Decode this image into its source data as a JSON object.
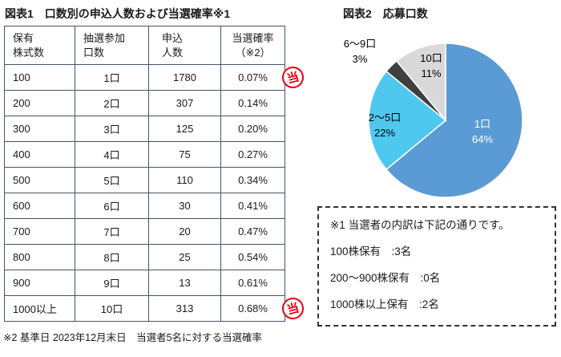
{
  "page": {
    "bg": "#ffffff",
    "text_color": "#1a1a1a",
    "accent_red": "#e60012",
    "table_border": "#44546A"
  },
  "table_section": {
    "title": "図表1　口数別の申込人数および当選確率※1",
    "headers": [
      [
        "保有",
        "株式数"
      ],
      [
        "抽選参加",
        "口数"
      ],
      [
        "申込",
        "人数"
      ],
      [
        "当選確率",
        "（※2）"
      ]
    ],
    "rows": [
      {
        "shares": "100",
        "units": "1口",
        "applicants": "1780",
        "probability": "0.07%"
      },
      {
        "shares": "200",
        "units": "2口",
        "applicants": "307",
        "probability": "0.14%"
      },
      {
        "shares": "300",
        "units": "3口",
        "applicants": "125",
        "probability": "0.20%"
      },
      {
        "shares": "400",
        "units": "4口",
        "applicants": "75",
        "probability": "0.27%"
      },
      {
        "shares": "500",
        "units": "5口",
        "applicants": "110",
        "probability": "0.34%"
      },
      {
        "shares": "600",
        "units": "6口",
        "applicants": "30",
        "probability": "0.41%"
      },
      {
        "shares": "700",
        "units": "7口",
        "applicants": "20",
        "probability": "0.47%"
      },
      {
        "shares": "800",
        "units": "8口",
        "applicants": "25",
        "probability": "0.54%"
      },
      {
        "shares": "900",
        "units": "9口",
        "applicants": "13",
        "probability": "0.61%"
      },
      {
        "shares": "1000以上",
        "units": "10口",
        "applicants": "313",
        "probability": "0.68%"
      }
    ],
    "stamp_label": "当",
    "footnote": "※2 基準日 2023年12月末日　当選者5名に対する当選確率"
  },
  "pie_section": {
    "title": "図表2　応募口数",
    "labels": [
      {
        "name": "1口",
        "pct": "64%"
      },
      {
        "name": "2～5口",
        "pct": "22%"
      },
      {
        "name": "6～9口",
        "pct": "3%"
      },
      {
        "name": "10口",
        "pct": "11%"
      }
    ]
  },
  "note_box": {
    "lines": [
      "※1 当選者の内訳は下記の通りです。",
      "100株保有　:3名",
      "200～900株保有　:0名",
      "1000株以上保有　:2名"
    ]
  },
  "chart_data": [
    {
      "type": "table",
      "title": "図表1　口数別の申込人数および当選確率※1",
      "columns": [
        "保有株式数",
        "抽選参加口数",
        "申込人数",
        "当選確率（※2）"
      ],
      "rows": [
        [
          "100",
          "1口",
          1780,
          "0.07%"
        ],
        [
          "200",
          "2口",
          307,
          "0.14%"
        ],
        [
          "300",
          "3口",
          125,
          "0.20%"
        ],
        [
          "400",
          "4口",
          75,
          "0.27%"
        ],
        [
          "500",
          "5口",
          110,
          "0.34%"
        ],
        [
          "600",
          "6口",
          30,
          "0.41%"
        ],
        [
          "700",
          "7口",
          20,
          "0.47%"
        ],
        [
          "800",
          "8口",
          25,
          "0.54%"
        ],
        [
          "900",
          "9口",
          13,
          "0.61%"
        ],
        [
          "1000以上",
          "10口",
          313,
          "0.68%"
        ]
      ],
      "footnote": "※2 基準日 2023年12月末日　当選者5名に対する当選確率"
    },
    {
      "type": "pie",
      "title": "図表2　応募口数",
      "labels": [
        "1口",
        "2～5口",
        "6～9口",
        "10口"
      ],
      "values": [
        64,
        22,
        3,
        11
      ],
      "unit": "%",
      "colors": [
        "#5B9BD5",
        "#4FC8F0",
        "#3F3F3F",
        "#D9D9D9"
      ],
      "start_angle_deg": 0,
      "direction": "clockwise",
      "label_text_colors": [
        "#ffffff",
        "#000000",
        "#000000",
        "#000000"
      ],
      "legend_position": "none"
    }
  ]
}
